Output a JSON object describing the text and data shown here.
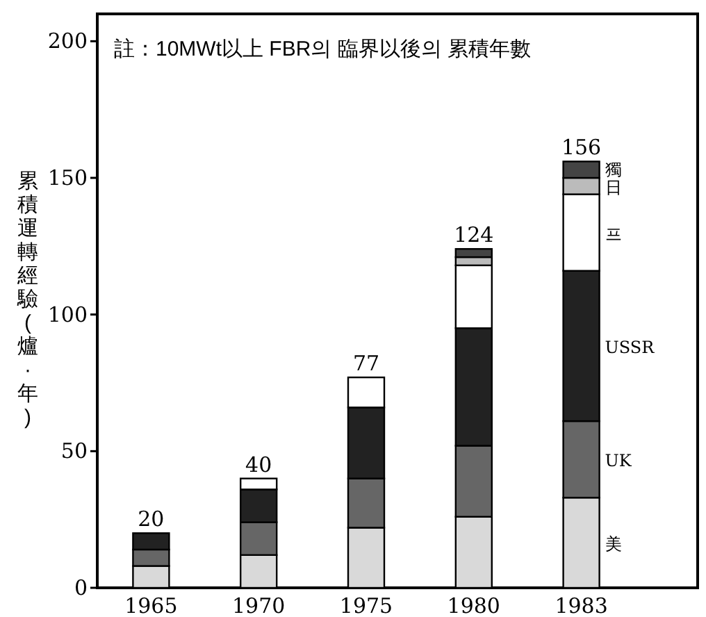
{
  "chart_data": {
    "type": "bar",
    "stacked": true,
    "ylabel": "累積運轉經驗(爐·年)",
    "annotations": [
      "註：10MWt以上 FBR의 臨界以後의 累積年數"
    ],
    "categories": [
      "1965",
      "1970",
      "1975",
      "1980",
      "1983"
    ],
    "series": [
      {
        "name": "美",
        "color": "#d9d9d9",
        "values": [
          8,
          12,
          22,
          26,
          33
        ]
      },
      {
        "name": "UK",
        "color": "#666666",
        "values": [
          6,
          12,
          18,
          26,
          28
        ]
      },
      {
        "name": "USSR",
        "color": "#222222",
        "values": [
          6,
          12,
          26,
          43,
          55
        ]
      },
      {
        "name": "프",
        "color": "#ffffff",
        "values": [
          0,
          4,
          11,
          23,
          28
        ]
      },
      {
        "name": "日",
        "color": "#bbbbbb",
        "values": [
          0,
          0,
          0,
          3,
          6
        ]
      },
      {
        "name": "獨",
        "color": "#444444",
        "values": [
          0,
          0,
          0,
          3,
          6
        ]
      }
    ],
    "totals": [
      "20",
      "40",
      "77",
      "124",
      "156"
    ],
    "ylim": [
      0,
      210
    ],
    "yticks": [
      0,
      50,
      100,
      150,
      200
    ]
  }
}
